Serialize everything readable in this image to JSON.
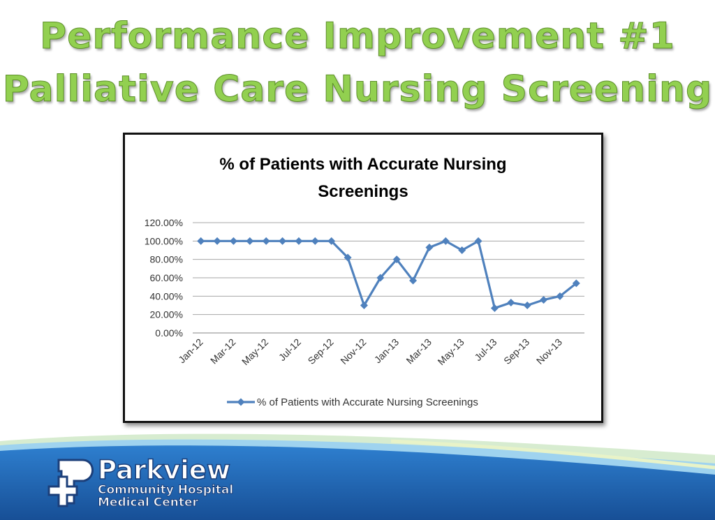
{
  "slide": {
    "title_line_1": "Performance Improvement #1",
    "title_line_2": "Palliative Care Nursing Screening"
  },
  "logo": {
    "name": "Parkview",
    "line_2": "Community Hospital",
    "line_3": "Medical Center"
  },
  "colors": {
    "title_green": "#92d050",
    "series_blue": "#4f81bd",
    "footer_blue": "#1f5fa8"
  },
  "chart_data": {
    "type": "line",
    "title": "% of Patients with Accurate Nursing Screenings",
    "title_lines": [
      "% of Patients with Accurate Nursing",
      "Screenings"
    ],
    "x": [
      "Jan-12",
      "Feb-12",
      "Mar-12",
      "Apr-12",
      "May-12",
      "Jun-12",
      "Jul-12",
      "Aug-12",
      "Sep-12",
      "Oct-12",
      "Nov-12",
      "Dec-12",
      "Jan-13",
      "Feb-13",
      "Mar-13",
      "Apr-13",
      "May-13",
      "Jun-13",
      "Jul-13",
      "Aug-13",
      "Sep-13",
      "Oct-13",
      "Nov-13",
      "Dec-13"
    ],
    "x_tick_labels": [
      "Jan-12",
      "Mar-12",
      "May-12",
      "Jul-12",
      "Sep-12",
      "Nov-12",
      "Jan-13",
      "Mar-13",
      "May-13",
      "Jul-13",
      "Sep-13",
      "Nov-13"
    ],
    "series": [
      {
        "name": "% of Patients with Accurate Nursing Screenings",
        "values": [
          100,
          100,
          100,
          100,
          100,
          100,
          100,
          100,
          100,
          82,
          30,
          60,
          80,
          57,
          93,
          100,
          90,
          100,
          27,
          33,
          30,
          36,
          40,
          54
        ]
      }
    ],
    "y_ticks": [
      "120.00%",
      "100.00%",
      "80.00%",
      "60.00%",
      "40.00%",
      "20.00%",
      "0.00%"
    ],
    "ylim": [
      0,
      120
    ],
    "grid": true,
    "legend_position": "bottom",
    "marker": "diamond"
  }
}
